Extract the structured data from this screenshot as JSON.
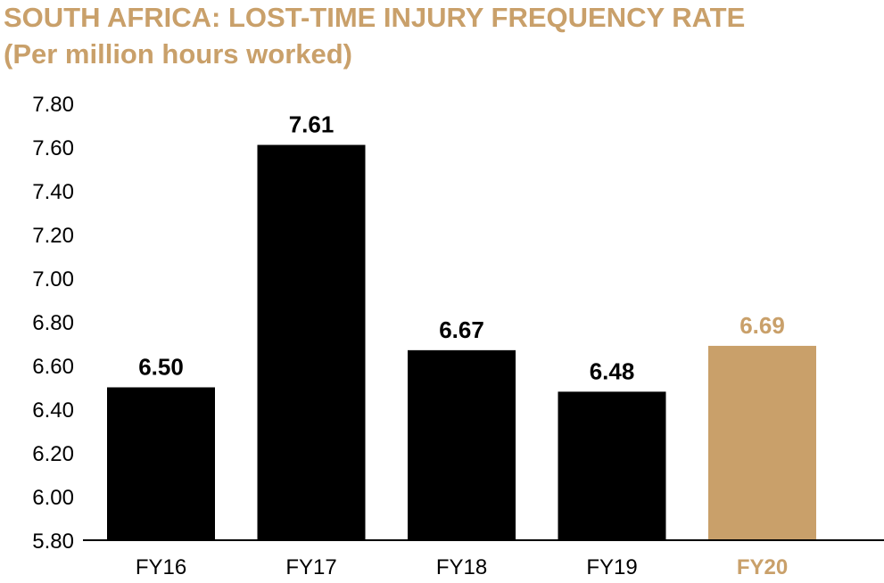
{
  "colors": {
    "title": "#c9a06a",
    "bar": "#000000",
    "highlight": "#c9a06a"
  },
  "chart_data": {
    "type": "bar",
    "title": "SOUTH AFRICA: LOST-TIME INJURY FREQUENCY RATE",
    "subtitle": "(Per million hours worked)",
    "categories": [
      "FY16",
      "FY17",
      "FY18",
      "FY19",
      "FY20"
    ],
    "values": [
      6.5,
      7.61,
      6.67,
      6.48,
      6.69
    ],
    "value_labels": [
      "6.50",
      "7.61",
      "6.67",
      "6.48",
      "6.69"
    ],
    "highlight_index": 4,
    "ylim": [
      5.8,
      7.8
    ],
    "yticks": [
      5.8,
      6.0,
      6.2,
      6.4,
      6.6,
      6.8,
      7.0,
      7.2,
      7.4,
      7.6,
      7.8
    ],
    "ytick_labels": [
      "5.80",
      "6.00",
      "6.20",
      "6.40",
      "6.60",
      "6.80",
      "7.00",
      "7.20",
      "7.40",
      "7.60",
      "7.80"
    ],
    "grid": false,
    "xlabel": "",
    "ylabel": ""
  }
}
